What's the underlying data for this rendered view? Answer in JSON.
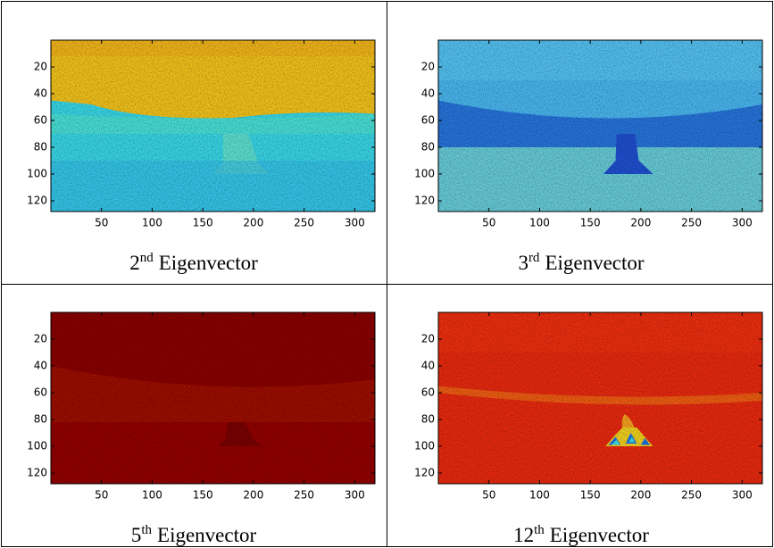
{
  "panels": [
    {
      "caption": {
        "number": "2",
        "suffix": "nd",
        "text": "Eigenvector"
      },
      "xlim": [
        0,
        320
      ],
      "ylim": [
        0,
        128
      ],
      "xticks": [
        50,
        100,
        150,
        200,
        250,
        300
      ],
      "yticks": [
        20,
        40,
        60,
        80,
        100,
        120
      ]
    },
    {
      "caption": {
        "number": "3",
        "suffix": "rd",
        "text": "Eigenvector"
      },
      "xlim": [
        0,
        320
      ],
      "ylim": [
        0,
        128
      ],
      "xticks": [
        50,
        100,
        150,
        200,
        250,
        300
      ],
      "yticks": [
        20,
        40,
        60,
        80,
        100,
        120
      ]
    },
    {
      "caption": {
        "number": "5",
        "suffix": "th",
        "text": "Eigenvector"
      },
      "xlim": [
        0,
        320
      ],
      "ylim": [
        0,
        128
      ],
      "xticks": [
        50,
        100,
        150,
        200,
        250,
        300
      ],
      "yticks": [
        20,
        40,
        60,
        80,
        100,
        120
      ]
    },
    {
      "caption": {
        "number": "12",
        "suffix": "th",
        "text": "Eigenvector"
      },
      "xlim": [
        0,
        320
      ],
      "ylim": [
        0,
        128
      ],
      "xticks": [
        50,
        100,
        150,
        200,
        250,
        300
      ],
      "yticks": [
        20,
        40,
        60,
        80,
        100,
        120
      ]
    }
  ]
}
